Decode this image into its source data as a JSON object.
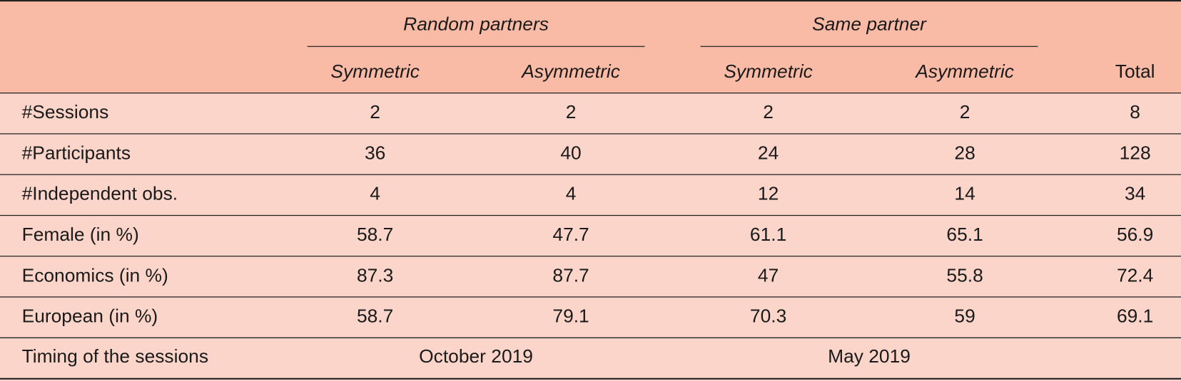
{
  "table": {
    "group_headers": [
      "Random partners",
      "Same partner"
    ],
    "sub_headers": [
      "Symmetric",
      "Asymmetric",
      "Symmetric",
      "Asymmetric"
    ],
    "total_header": "Total",
    "rows": [
      {
        "label": "#Sessions",
        "cells": [
          "2",
          "2",
          "2",
          "2",
          "8"
        ]
      },
      {
        "label": "#Participants",
        "cells": [
          "36",
          "40",
          "24",
          "28",
          "128"
        ]
      },
      {
        "label": "#Independent obs.",
        "cells": [
          "4",
          "4",
          "12",
          "14",
          "34"
        ]
      },
      {
        "label": "Female (in %)",
        "cells": [
          "58.7",
          "47.7",
          "61.1",
          "65.1",
          "56.9"
        ]
      },
      {
        "label": "Economics (in %)",
        "cells": [
          "87.3",
          "87.7",
          "47",
          "55.8",
          "72.4"
        ]
      },
      {
        "label": "European (in %)",
        "cells": [
          "58.7",
          "79.1",
          "70.3",
          "59",
          "69.1"
        ]
      }
    ],
    "timing": {
      "label": "Timing of the sessions",
      "cells": [
        "October 2019",
        "May 2019"
      ]
    }
  }
}
